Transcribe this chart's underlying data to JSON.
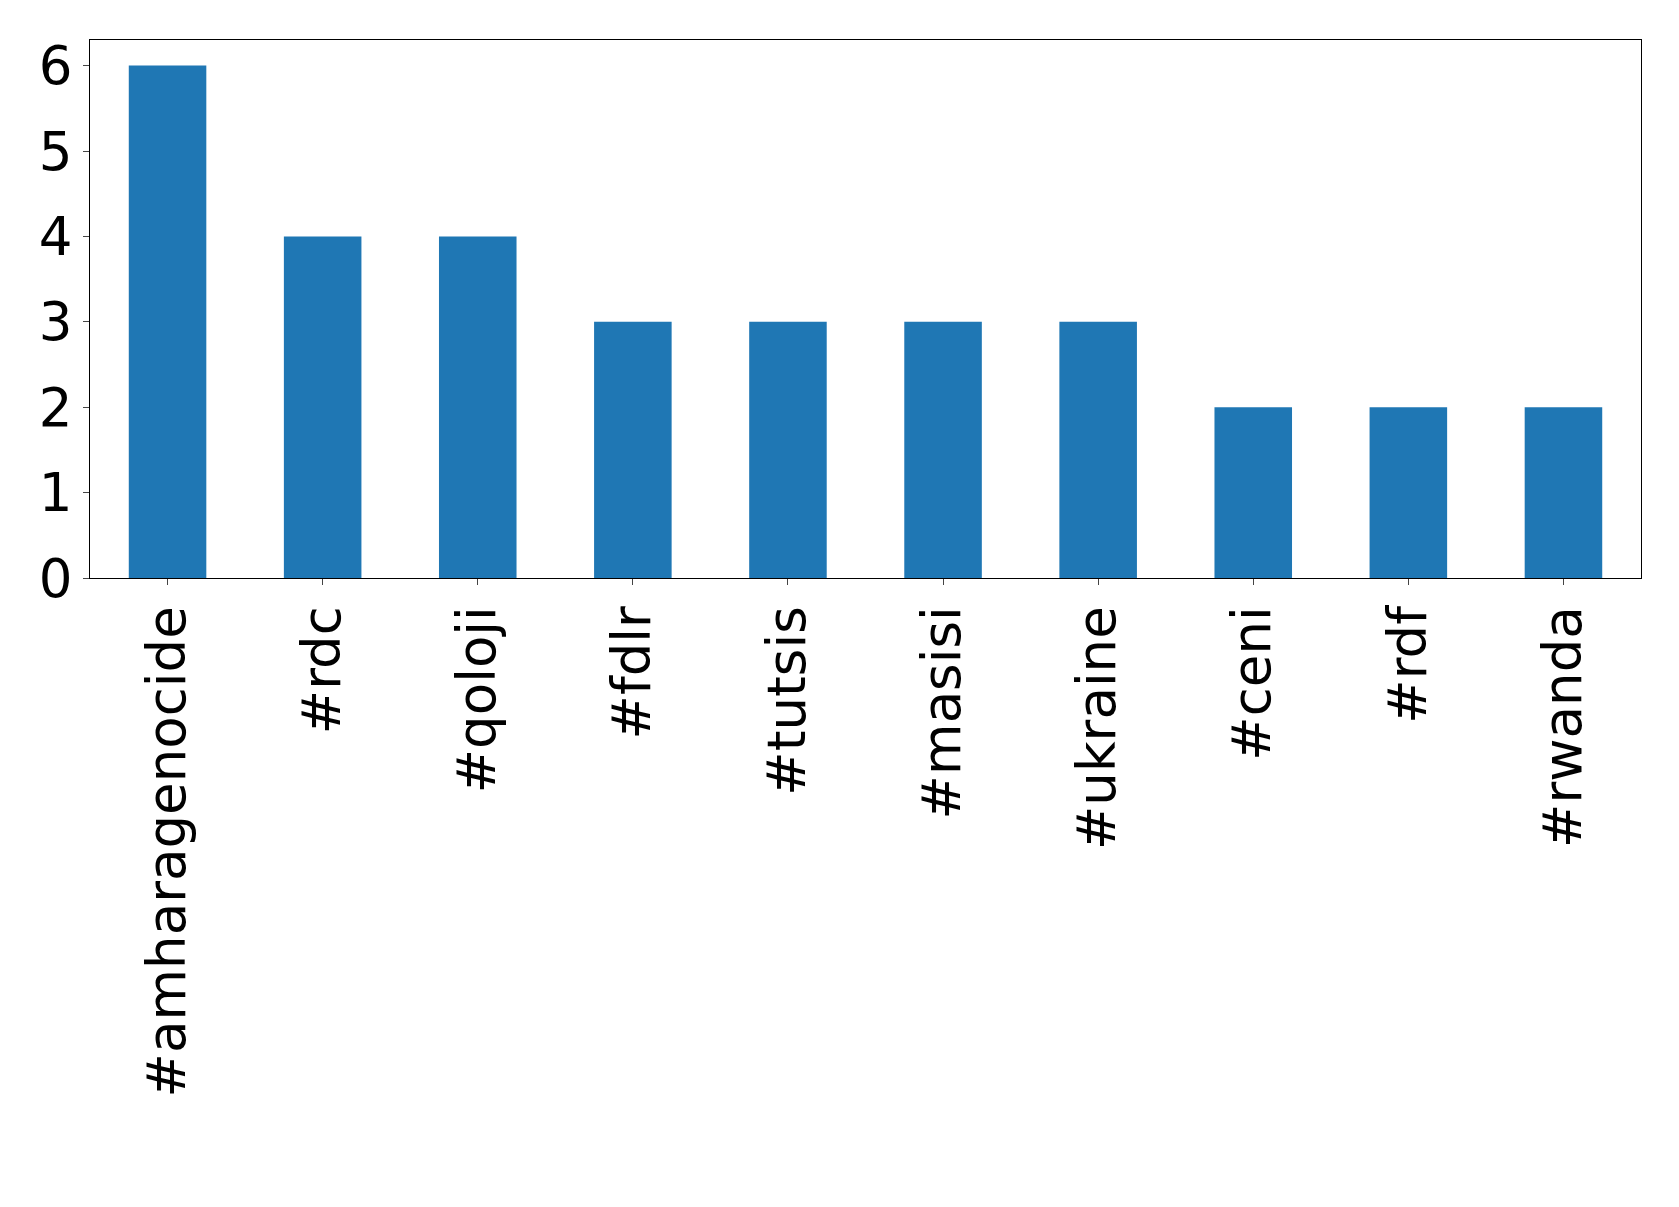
{
  "chart_data": {
    "type": "bar",
    "categories": [
      "#amharagenocide",
      "#rdc",
      "#qoloji",
      "#fdlr",
      "#tutsis",
      "#masisi",
      "#ukraine",
      "#ceni",
      "#rdf",
      "#rwanda"
    ],
    "values": [
      6,
      4,
      4,
      3,
      3,
      3,
      3,
      2,
      2,
      2
    ],
    "color": "#1f77b4",
    "ylim": [
      0,
      6.3
    ],
    "yticks": [
      0,
      1,
      2,
      3,
      4,
      5,
      6
    ]
  }
}
